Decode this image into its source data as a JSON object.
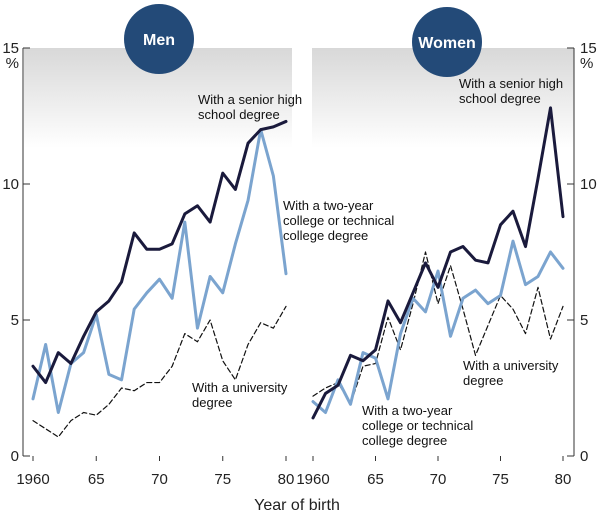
{
  "chart_data": [
    {
      "type": "line",
      "title": "Men",
      "xlabel": "Year of birth",
      "ylabel": "%",
      "x": [
        1960,
        1961,
        1962,
        1963,
        1964,
        1965,
        1966,
        1967,
        1968,
        1969,
        1970,
        1971,
        1972,
        1973,
        1974,
        1975,
        1976,
        1977,
        1978,
        1979,
        1980
      ],
      "xlim": [
        1960,
        1980
      ],
      "ylim": [
        0,
        15
      ],
      "x_ticks": [
        "1960",
        "65",
        "70",
        "75",
        "80"
      ],
      "y_ticks": [
        "0",
        "5",
        "10",
        "15"
      ],
      "series": [
        {
          "name": "With a senior high school degree",
          "color": "#1a1a3c",
          "style": "solid",
          "values": [
            3.3,
            2.7,
            3.8,
            3.4,
            4.4,
            5.3,
            5.7,
            6.4,
            8.2,
            7.6,
            7.6,
            7.8,
            8.9,
            9.2,
            8.6,
            10.4,
            9.8,
            11.5,
            12.0,
            12.1,
            12.3
          ]
        },
        {
          "name": "With a two-year college or technical college degree",
          "color": "#7ba4cf",
          "style": "solid",
          "values": [
            2.1,
            4.1,
            1.6,
            3.4,
            3.8,
            5.2,
            3.0,
            2.8,
            5.4,
            6.0,
            6.5,
            5.8,
            8.6,
            4.7,
            6.6,
            6.0,
            7.8,
            9.4,
            12.0,
            10.3,
            6.7
          ]
        },
        {
          "name": "With a university degree",
          "color": "#111111",
          "style": "dashed",
          "values": [
            1.3,
            1.0,
            0.7,
            1.3,
            1.6,
            1.5,
            1.9,
            2.5,
            2.4,
            2.7,
            2.7,
            3.3,
            4.5,
            4.2,
            5.0,
            3.5,
            2.8,
            4.1,
            4.9,
            4.7,
            5.5
          ]
        }
      ],
      "annotations": [
        {
          "series": 0,
          "lines": [
            "With a senior high",
            "school degree"
          ]
        },
        {
          "series": 1,
          "lines": [
            "With a two-year",
            "college or technical",
            "college degree"
          ]
        },
        {
          "series": 2,
          "lines": [
            "With a university",
            "degree"
          ]
        }
      ]
    },
    {
      "type": "line",
      "title": "Women",
      "ylabel": "%",
      "x": [
        1960,
        1961,
        1962,
        1963,
        1964,
        1965,
        1966,
        1967,
        1968,
        1969,
        1970,
        1971,
        1972,
        1973,
        1974,
        1975,
        1976,
        1977,
        1978,
        1979,
        1980
      ],
      "xlim": [
        1960,
        1980
      ],
      "ylim": [
        0,
        15
      ],
      "x_ticks": [
        "1960",
        "65",
        "70",
        "75",
        "80"
      ],
      "y_ticks": [
        "0",
        "5",
        "10",
        "15"
      ],
      "series": [
        {
          "name": "With a senior high school degree",
          "color": "#1a1a3c",
          "style": "solid",
          "values": [
            1.4,
            2.3,
            2.6,
            3.7,
            3.5,
            3.9,
            5.7,
            4.9,
            6.0,
            7.1,
            6.2,
            7.5,
            7.7,
            7.2,
            7.1,
            8.5,
            9.0,
            7.7,
            10.2,
            12.8,
            8.8
          ]
        },
        {
          "name": "With a two-year college or technical college degree",
          "color": "#7ba4cf",
          "style": "solid",
          "values": [
            2.0,
            1.6,
            2.8,
            1.9,
            3.8,
            3.6,
            2.1,
            4.5,
            5.8,
            5.3,
            6.8,
            4.4,
            5.8,
            6.1,
            5.6,
            5.9,
            7.9,
            6.3,
            6.6,
            7.5,
            6.9
          ]
        },
        {
          "name": "With a university degree",
          "color": "#111111",
          "style": "dashed",
          "values": [
            2.2,
            2.5,
            2.7,
            1.9,
            3.3,
            3.4,
            5.1,
            3.9,
            5.6,
            7.5,
            5.6,
            7.0,
            5.4,
            3.7,
            4.8,
            5.9,
            5.4,
            4.5,
            6.2,
            4.3,
            5.5
          ]
        }
      ],
      "annotations": [
        {
          "series": 0,
          "lines": [
            "With a senior high",
            "school degree"
          ]
        },
        {
          "series": 1,
          "lines": [
            "With a two-year",
            "college or technical",
            "college degree"
          ]
        },
        {
          "series": 2,
          "lines": [
            "With a university",
            "degree"
          ]
        }
      ]
    }
  ],
  "colors": {
    "badge": "#234a78",
    "band_top": "#d8d8d8",
    "axis": "#333333"
  }
}
